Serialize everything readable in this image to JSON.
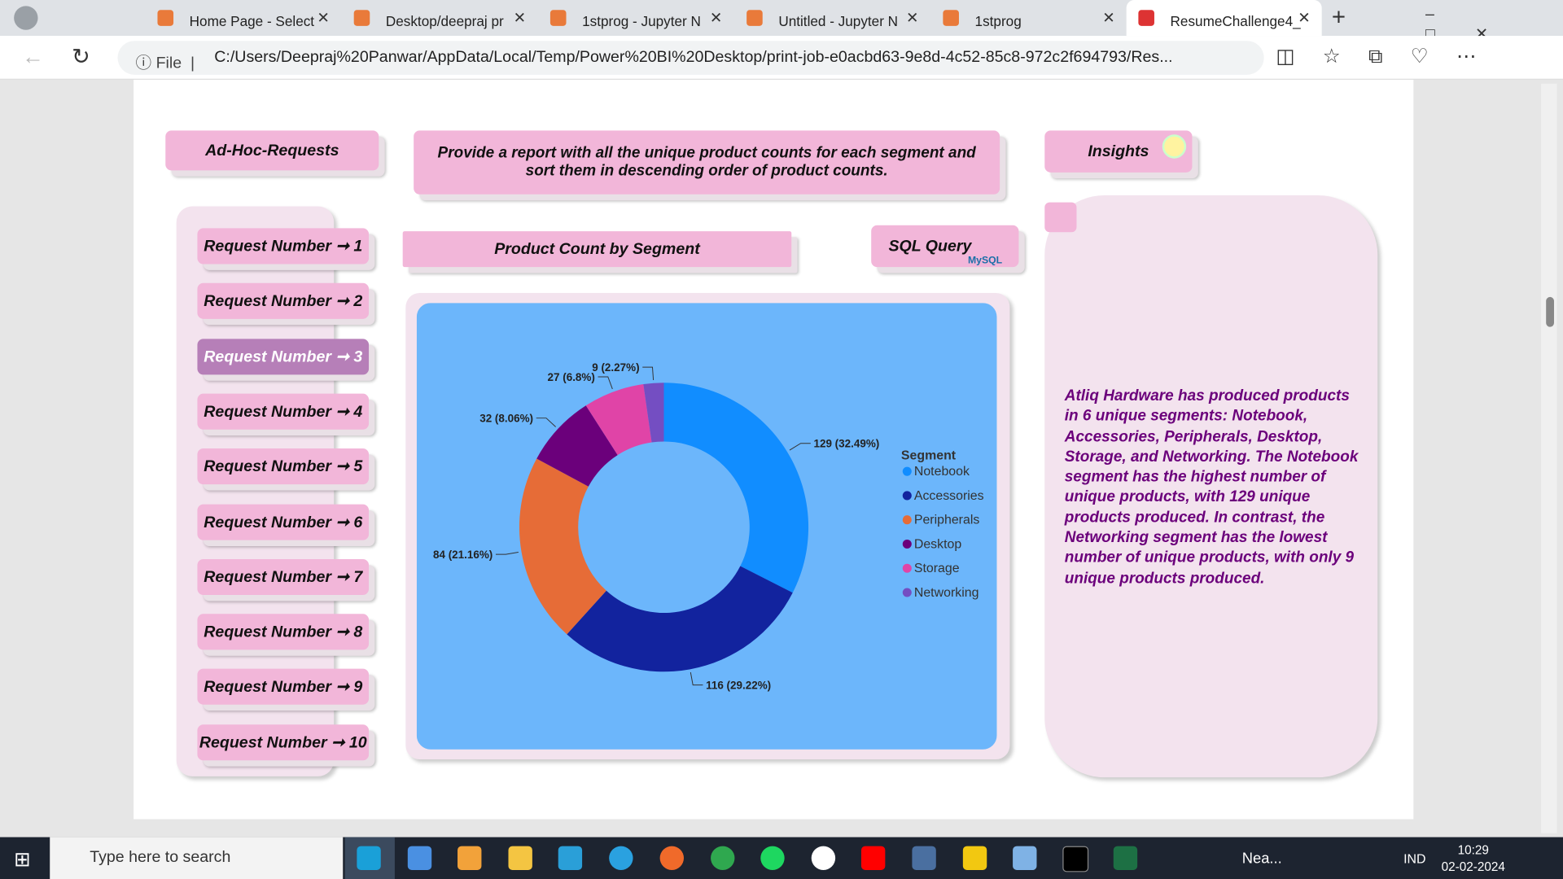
{
  "browser": {
    "tabs": [
      "Home Page - Select",
      "Desktop/deepraj pr",
      "1stprog - Jupyter N",
      "Untitled - Jupyter N",
      "1stprog",
      "ResumeChallenge4_"
    ],
    "address": {
      "scheme": "File",
      "url": "C:/Users/Deepraj%20Panwar/AppData/Local/Temp/Power%20BI%20Desktop/print-job-e0acbd63-9e8d-4c52-85c8-972c2f694793/Res..."
    }
  },
  "report": {
    "header": "Ad-Hoc-Requests",
    "question": "Provide a report with all the unique product counts for each segment and sort them in descending order of product counts.",
    "insights_title": "Insights",
    "requests": [
      "Request Number ➞ 1",
      "Request Number ➞ 2",
      "Request Number ➞ 3",
      "Request Number ➞ 4",
      "Request Number ➞ 5",
      "Request Number ➞ 6",
      "Request Number ➞ 7",
      "Request Number ➞ 8",
      "Request Number ➞ 9",
      "Request Number ➞ 10"
    ],
    "sql_button": "SQL Query",
    "sql_logo": "MySQL",
    "insights_text": "Atliq Hardware has produced products in 6 unique segments: Notebook, Accessories, Peripherals, Desktop, Storage, and Networking. The Notebook segment has the highest number of unique products, with 129 unique products produced. In contrast, the Networking segment has the lowest number of unique products, with only 9 unique products produced."
  },
  "chart_data": {
    "type": "pie",
    "title": "Product Count by Segment",
    "legend_title": "Segment",
    "categories": [
      "Notebook",
      "Accessories",
      "Peripherals",
      "Desktop",
      "Storage",
      "Networking"
    ],
    "values": [
      129,
      116,
      84,
      32,
      27,
      9
    ],
    "value_labels": [
      "129 (32.49%)",
      "116 (29.22%)",
      "84 (21.16%)",
      "32 (8.06%)",
      "27 (6.8%)",
      "9 (2.27%)"
    ],
    "colors": [
      "#118dff",
      "#12239e",
      "#e66c37",
      "#6b007b",
      "#e044a7",
      "#744ec2"
    ]
  },
  "taskbar": {
    "search": "Type here to search",
    "weather": "Nea...",
    "language": "IND",
    "time": "10:29",
    "date": "02-02-2024"
  }
}
